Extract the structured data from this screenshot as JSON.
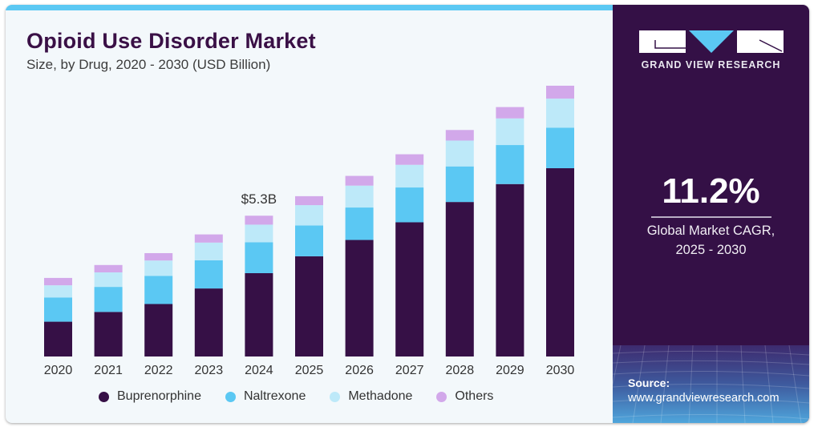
{
  "header": {
    "title": "Opioid Use Disorder Market",
    "subtitle": "Size, by Drug, 2020 - 2030 (USD Billion)"
  },
  "sidebar": {
    "brand": "GRAND VIEW RESEARCH",
    "cagr_value": "11.2%",
    "cagr_label_line1": "Global Market CAGR,",
    "cagr_label_line2": "2025 - 2030",
    "source_label": "Source:",
    "source_url": "www.grandviewresearch.com"
  },
  "colors": {
    "Buprenorphine": "#361046",
    "Naltrexone": "#5bc8f3",
    "Methadone": "#bde9f9",
    "Others": "#d2a8ea",
    "accent": "#5bc8f3",
    "panel": "#341046"
  },
  "chart_data": {
    "type": "bar",
    "stacked": true,
    "title": "Opioid Use Disorder Market",
    "subtitle": "Size, by Drug, 2020 - 2030 (USD Billion)",
    "xlabel": "",
    "ylabel": "",
    "categories": [
      "2020",
      "2021",
      "2022",
      "2023",
      "2024",
      "2025",
      "2026",
      "2027",
      "2028",
      "2029",
      "2030"
    ],
    "series": [
      {
        "name": "Buprenorphine",
        "values": [
          1.32,
          1.69,
          1.99,
          2.58,
          3.16,
          3.8,
          4.42,
          5.09,
          5.86,
          6.54,
          7.14
        ]
      },
      {
        "name": "Naltrexone",
        "values": [
          0.92,
          0.95,
          1.07,
          1.07,
          1.17,
          1.17,
          1.23,
          1.32,
          1.35,
          1.48,
          1.54
        ]
      },
      {
        "name": "Methadone",
        "values": [
          0.46,
          0.55,
          0.58,
          0.67,
          0.67,
          0.77,
          0.83,
          0.86,
          0.98,
          1.01,
          1.1
        ]
      },
      {
        "name": "Others",
        "values": [
          0.28,
          0.28,
          0.28,
          0.31,
          0.34,
          0.34,
          0.37,
          0.4,
          0.4,
          0.43,
          0.49
        ]
      }
    ],
    "annotations": [
      {
        "category": "2024",
        "text": "$5.3B"
      }
    ],
    "ylim": [
      0,
      10.3
    ],
    "grid": false,
    "legend": "bottom"
  }
}
